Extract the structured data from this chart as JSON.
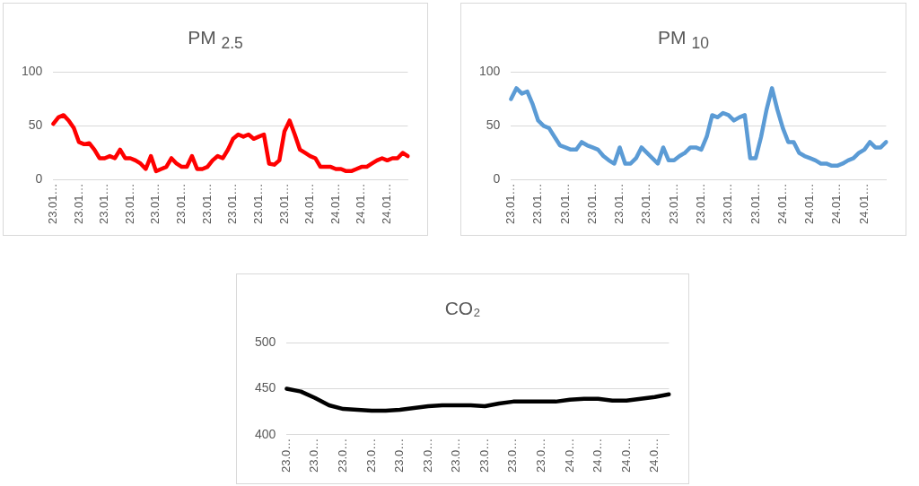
{
  "chart_data": [
    {
      "type": "line",
      "title": "PM $_{2.5}$",
      "categories": [
        "23.01…",
        null,
        null,
        null,
        null,
        "23.01…",
        null,
        null,
        null,
        null,
        "23.01…",
        null,
        null,
        null,
        null,
        "23.01…",
        null,
        null,
        null,
        null,
        "23.01…",
        null,
        null,
        null,
        null,
        "23.01…",
        null,
        null,
        null,
        null,
        "23.01…",
        null,
        null,
        null,
        null,
        "23.01…",
        null,
        null,
        null,
        null,
        "23.01…",
        null,
        null,
        null,
        null,
        "23.01…",
        null,
        null,
        null,
        null,
        "24.01…",
        null,
        null,
        null,
        null,
        "24.01…",
        null,
        null,
        null,
        null,
        "24.01…",
        null,
        null,
        null,
        null,
        "24.01…",
        null,
        null,
        null,
        null
      ],
      "series": [
        {
          "color": "#ff0000",
          "values": [
            52,
            58,
            60,
            55,
            48,
            35,
            33,
            34,
            28,
            20,
            20,
            22,
            20,
            28,
            20,
            20,
            18,
            15,
            10,
            22,
            8,
            10,
            12,
            20,
            15,
            12,
            12,
            22,
            10,
            10,
            12,
            18,
            22,
            20,
            28,
            38,
            42,
            40,
            42,
            38,
            40,
            42,
            15,
            14,
            18,
            45,
            55,
            42,
            28,
            25,
            22,
            20,
            12,
            12,
            12,
            10,
            10,
            8,
            8,
            10,
            12,
            12,
            15,
            18,
            20,
            18,
            20,
            20,
            25,
            22
          ]
        }
      ],
      "ylim": [
        0,
        100
      ],
      "yticks": [
        0,
        50,
        100
      ],
      "grid": "y",
      "legend": false,
      "marker": "none"
    },
    {
      "type": "line",
      "title": "PM $_{10}$",
      "categories": [
        "23.01…",
        null,
        null,
        null,
        null,
        "23.01…",
        null,
        null,
        null,
        null,
        "23.01…",
        null,
        null,
        null,
        null,
        "23.01…",
        null,
        null,
        null,
        null,
        "23.01…",
        null,
        null,
        null,
        null,
        "23.01…",
        null,
        null,
        null,
        null,
        "23.01…",
        null,
        null,
        null,
        null,
        "23.01…",
        null,
        null,
        null,
        null,
        "23.01…",
        null,
        null,
        null,
        null,
        "23.01…",
        null,
        null,
        null,
        null,
        "24.01…",
        null,
        null,
        null,
        null,
        "24.01…",
        null,
        null,
        null,
        null,
        "24.01…",
        null,
        null,
        null,
        null,
        "24.01…",
        null,
        null,
        null,
        null
      ],
      "series": [
        {
          "color": "#5b9bd5",
          "values": [
            75,
            85,
            80,
            82,
            70,
            55,
            50,
            48,
            40,
            32,
            30,
            28,
            28,
            35,
            32,
            30,
            28,
            22,
            18,
            15,
            30,
            15,
            15,
            20,
            30,
            25,
            20,
            15,
            30,
            18,
            18,
            22,
            25,
            30,
            30,
            28,
            40,
            60,
            58,
            62,
            60,
            55,
            58,
            60,
            20,
            20,
            40,
            65,
            85,
            65,
            48,
            35,
            35,
            25,
            22,
            20,
            18,
            15,
            15,
            13,
            13,
            15,
            18,
            20,
            25,
            28,
            35,
            30,
            30,
            35
          ]
        }
      ],
      "ylim": [
        0,
        100
      ],
      "yticks": [
        0,
        50,
        100
      ],
      "grid": "y",
      "legend": false,
      "marker": "none"
    },
    {
      "type": "line",
      "title": "CO₂",
      "categories": [
        "23.0…",
        null,
        "23.0…",
        null,
        "23.0…",
        null,
        "23.0…",
        null,
        "23.0…",
        null,
        "23.0…",
        null,
        "23.0…",
        null,
        "23.0…",
        null,
        "23.0…",
        null,
        "23.0…",
        null,
        "24.0…",
        null,
        "24.0…",
        null,
        "24.0…",
        null,
        "24.0…",
        null
      ],
      "series": [
        {
          "color": "#000000",
          "values": [
            450,
            447,
            440,
            432,
            428,
            427,
            426,
            426,
            427,
            429,
            431,
            432,
            432,
            432,
            431,
            434,
            436,
            436,
            436,
            436,
            438,
            439,
            439,
            437,
            437,
            439,
            441,
            444
          ]
        }
      ],
      "ylim": [
        400,
        500
      ],
      "yticks": [
        400,
        450,
        500
      ],
      "grid": "y",
      "legend": false,
      "marker": "none"
    }
  ]
}
